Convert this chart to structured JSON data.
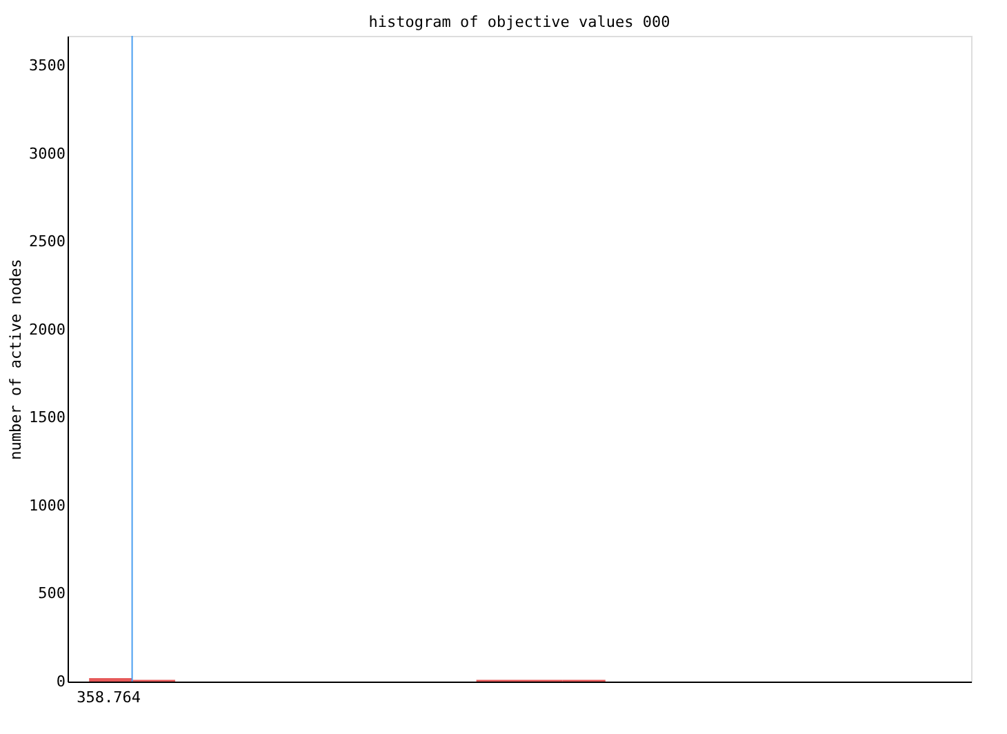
{
  "chart_data": {
    "type": "bar",
    "title": "histogram of objective values 000",
    "ylabel": "number of active nodes",
    "categories": [
      null,
      null,
      null,
      null,
      null,
      null,
      null,
      null,
      null,
      null,
      null,
      null,
      null,
      null,
      null,
      null,
      null,
      null,
      null,
      null
    ],
    "values": [
      20,
      10,
      0,
      0,
      0,
      0,
      0,
      0,
      0,
      10,
      10,
      10,
      0,
      0,
      0,
      0,
      0,
      0,
      0,
      0
    ],
    "color": "#e03030",
    "tick_labels": "y",
    "annotations": [
      "358.764"
    ],
    "ylim": [
      0,
      3670
    ],
    "yticks": [
      0,
      500,
      1000,
      1500,
      2000,
      2500,
      3000,
      3500
    ],
    "grid": false
  }
}
